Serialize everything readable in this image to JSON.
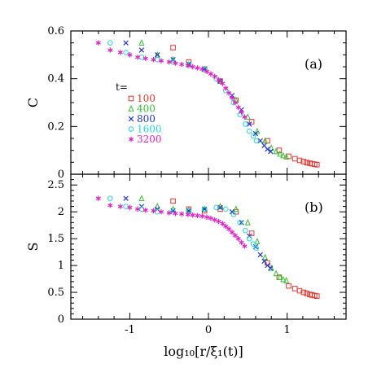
{
  "chart_data": [
    {
      "type": "scatter",
      "panel_label": "(a)",
      "ylabel": "C",
      "xlabel": "",
      "xlim": [
        -1.75,
        1.75
      ],
      "ylim": [
        0,
        0.6
      ],
      "xticks": [
        "-1",
        "0",
        "1"
      ],
      "yticks": [
        "0",
        "0.2",
        "0.4",
        "0.6"
      ],
      "legend": {
        "title": "t=",
        "placement": "left-center"
      },
      "series": [
        {
          "name": "100",
          "marker": "square",
          "color": "#e8332b",
          "x": [
            -0.45,
            -0.25,
            -0.05,
            0.15,
            0.35,
            0.55,
            0.75,
            0.9,
            1.02,
            1.1,
            1.16,
            1.21,
            1.25,
            1.29,
            1.32,
            1.35,
            1.38
          ],
          "y": [
            0.53,
            0.47,
            0.44,
            0.39,
            0.31,
            0.22,
            0.14,
            0.1,
            0.075,
            0.065,
            0.058,
            0.053,
            0.049,
            0.046,
            0.044,
            0.042,
            0.04
          ]
        },
        {
          "name": "400",
          "marker": "triangle",
          "color": "#33c133",
          "x": [
            -0.85,
            -0.65,
            -0.45,
            -0.25,
            -0.05,
            0.15,
            0.35,
            0.5,
            0.62,
            0.72,
            0.8,
            0.86,
            0.91,
            0.95,
            0.99
          ],
          "y": [
            0.55,
            0.5,
            0.48,
            0.46,
            0.44,
            0.39,
            0.31,
            0.24,
            0.18,
            0.14,
            0.11,
            0.095,
            0.085,
            0.078,
            0.073
          ]
        },
        {
          "name": "800",
          "marker": "cross",
          "color": "#2233cc",
          "x": [
            -1.05,
            -0.85,
            -0.65,
            -0.45,
            -0.25,
            -0.05,
            0.15,
            0.3,
            0.42,
            0.52,
            0.6,
            0.66,
            0.71,
            0.75,
            0.79
          ],
          "y": [
            0.55,
            0.52,
            0.5,
            0.48,
            0.46,
            0.44,
            0.39,
            0.33,
            0.27,
            0.21,
            0.17,
            0.14,
            0.12,
            0.105,
            0.095
          ]
        },
        {
          "name": "1600",
          "marker": "circle",
          "color": "#22d6e0",
          "x": [
            -1.25,
            -1.05,
            -0.85,
            -0.65,
            -0.45,
            -0.25,
            -0.05,
            0.1,
            0.22,
            0.32,
            0.4,
            0.47,
            0.52,
            0.57,
            0.61
          ],
          "y": [
            0.55,
            0.51,
            0.49,
            0.48,
            0.47,
            0.46,
            0.44,
            0.4,
            0.35,
            0.3,
            0.25,
            0.21,
            0.18,
            0.16,
            0.14
          ]
        },
        {
          "name": "3200",
          "marker": "star",
          "color": "#e020c8",
          "x": [
            -1.4,
            -1.25,
            -1.12,
            -1.0,
            -0.9,
            -0.8,
            -0.7,
            -0.6,
            -0.5,
            -0.42,
            -0.34,
            -0.26,
            -0.2,
            -0.14,
            -0.08,
            -0.02,
            0.03,
            0.08,
            0.13,
            0.18,
            0.22,
            0.26,
            0.3,
            0.34,
            0.38,
            0.42,
            0.46
          ],
          "y": [
            0.55,
            0.52,
            0.51,
            0.5,
            0.49,
            0.485,
            0.48,
            0.475,
            0.47,
            0.465,
            0.46,
            0.455,
            0.45,
            0.445,
            0.44,
            0.43,
            0.42,
            0.41,
            0.395,
            0.38,
            0.36,
            0.34,
            0.32,
            0.3,
            0.28,
            0.26,
            0.24
          ]
        }
      ]
    },
    {
      "type": "scatter",
      "panel_label": "(b)",
      "ylabel": "S",
      "xlabel": "log₁₀[r/ξ₁(t)]",
      "xlim": [
        -1.75,
        1.75
      ],
      "ylim": [
        0,
        2.7
      ],
      "xticks": [
        "-1",
        "0",
        "1"
      ],
      "yticks": [
        "0",
        "0.5",
        "1",
        "1.5",
        "2",
        "2.5"
      ],
      "series": [
        {
          "name": "100",
          "marker": "square",
          "color": "#e8332b",
          "x": [
            -0.45,
            -0.25,
            -0.05,
            0.15,
            0.35,
            0.55,
            0.75,
            0.9,
            1.02,
            1.1,
            1.16,
            1.21,
            1.25,
            1.29,
            1.32,
            1.35,
            1.38
          ],
          "y": [
            2.2,
            2.05,
            2.02,
            2.05,
            2.0,
            1.6,
            1.05,
            0.78,
            0.62,
            0.57,
            0.53,
            0.5,
            0.48,
            0.46,
            0.45,
            0.44,
            0.43
          ]
        },
        {
          "name": "400",
          "marker": "triangle",
          "color": "#33c133",
          "x": [
            -0.85,
            -0.65,
            -0.45,
            -0.25,
            -0.05,
            0.15,
            0.35,
            0.5,
            0.62,
            0.72,
            0.8,
            0.86,
            0.91,
            0.95,
            0.99
          ],
          "y": [
            2.25,
            2.1,
            2.05,
            2.03,
            2.05,
            2.1,
            2.05,
            1.8,
            1.45,
            1.15,
            0.95,
            0.85,
            0.78,
            0.74,
            0.72
          ]
        },
        {
          "name": "800",
          "marker": "cross",
          "color": "#2233cc",
          "x": [
            -1.05,
            -0.85,
            -0.65,
            -0.45,
            -0.25,
            -0.05,
            0.15,
            0.3,
            0.42,
            0.52,
            0.6,
            0.66,
            0.71,
            0.75,
            0.79
          ],
          "y": [
            2.25,
            2.1,
            2.05,
            2.02,
            2.02,
            2.05,
            2.08,
            2.0,
            1.8,
            1.55,
            1.35,
            1.2,
            1.08,
            1.0,
            0.95
          ]
        },
        {
          "name": "1600",
          "marker": "circle",
          "color": "#22d6e0",
          "x": [
            -1.25,
            -1.05,
            -0.85,
            -0.65,
            -0.45,
            -0.25,
            -0.05,
            0.1,
            0.22,
            0.32,
            0.4,
            0.47,
            0.52,
            0.57,
            0.61
          ],
          "y": [
            2.25,
            2.1,
            2.05,
            2.0,
            2.0,
            2.02,
            2.05,
            2.08,
            2.05,
            1.95,
            1.8,
            1.65,
            1.5,
            1.4,
            1.32
          ]
        },
        {
          "name": "3200",
          "marker": "star",
          "color": "#e020c8",
          "x": [
            -1.4,
            -1.25,
            -1.12,
            -1.0,
            -0.9,
            -0.8,
            -0.7,
            -0.6,
            -0.5,
            -0.42,
            -0.34,
            -0.26,
            -0.2,
            -0.14,
            -0.08,
            -0.02,
            0.03,
            0.08,
            0.13,
            0.18,
            0.22,
            0.26,
            0.3,
            0.34,
            0.38,
            0.42,
            0.46
          ],
          "y": [
            2.25,
            2.12,
            2.1,
            2.08,
            2.05,
            2.03,
            2.02,
            2.0,
            1.98,
            1.97,
            1.96,
            1.95,
            1.94,
            1.93,
            1.92,
            1.9,
            1.88,
            1.85,
            1.82,
            1.78,
            1.73,
            1.68,
            1.62,
            1.56,
            1.5,
            1.43,
            1.36
          ]
        }
      ]
    }
  ]
}
